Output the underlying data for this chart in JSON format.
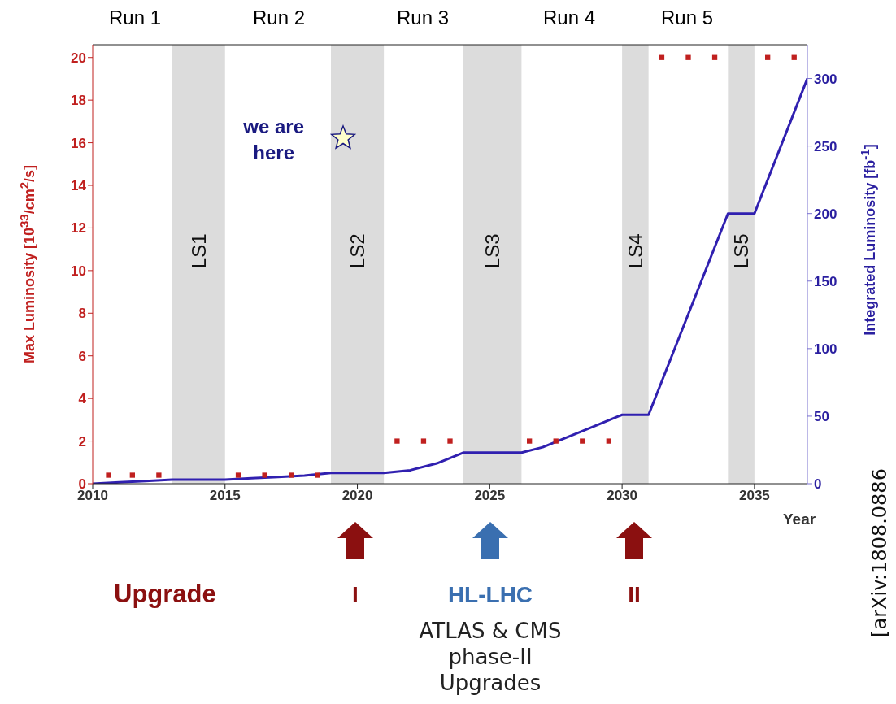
{
  "chart_data": {
    "type": "scatter",
    "xlabel": "Year",
    "ylabel": "Max Luminosity [10$^{33}$/cm$^{2}$/s]",
    "y2label": "Integrated Luminosity [fb$^{-1}$]",
    "xlim": [
      2010,
      2037
    ],
    "xticks": [
      2010,
      2015,
      2020,
      2025,
      2030,
      2035
    ],
    "ylim": [
      0,
      20.6
    ],
    "yticks": [
      0,
      2,
      4,
      6,
      8,
      10,
      12,
      14,
      16,
      18,
      20
    ],
    "y2lim": [
      0,
      325
    ],
    "y2ticks": [
      0,
      50,
      100,
      150,
      200,
      250,
      300
    ],
    "line_style": "solid",
    "series": [
      {
        "marker": "square",
        "color": "#c0201f",
        "x": [
          2010.6,
          2011.5,
          2012.5,
          2015.5,
          2016.5,
          2017.5,
          2018.5,
          2021.5,
          2022.5,
          2023.5,
          2026.5,
          2027.5,
          2028.5,
          2029.5,
          2031.5,
          2032.5,
          2033.5,
          2035.5,
          2036.5
        ],
        "values": [
          0.4,
          0.4,
          0.4,
          0.4,
          0.4,
          0.4,
          0.4,
          2,
          2,
          2,
          2,
          2,
          2,
          2,
          20,
          20,
          20,
          20,
          20
        ]
      },
      {
        "type": "line",
        "axis": "y2",
        "color": "#3020b0",
        "x": [
          2010,
          2011,
          2012,
          2013,
          2015,
          2016,
          2017,
          2018,
          2019,
          2021,
          2022,
          2023,
          2024,
          2026.2,
          2027,
          2028,
          2029,
          2030,
          2031,
          2034,
          2035,
          2037
        ],
        "values": [
          0,
          1,
          2,
          3,
          3,
          4,
          5,
          6,
          8,
          8,
          10,
          15,
          23,
          23,
          27,
          35,
          43,
          51,
          51,
          200,
          200,
          300
        ]
      }
    ],
    "bands": [
      {
        "axis": "x",
        "from": 2013,
        "to": 2015,
        "label": "LS1",
        "color": "#dcdcdc"
      },
      {
        "axis": "x",
        "from": 2019,
        "to": 2021,
        "label": "LS2",
        "color": "#dcdcdc"
      },
      {
        "axis": "x",
        "from": 2024,
        "to": 2026.2,
        "label": "LS3",
        "color": "#dcdcdc"
      },
      {
        "axis": "x",
        "from": 2030,
        "to": 2031,
        "label": "LS4",
        "color": "#dcdcdc"
      },
      {
        "axis": "x",
        "from": 2034,
        "to": 2035,
        "label": "LS5",
        "color": "#dcdcdc"
      }
    ],
    "annotations": [
      {
        "text": "we are here",
        "x": 2019.45,
        "y": 16.2
      },
      "Run 1",
      "Run 2",
      "Run 3",
      "Run 4",
      "Run 5",
      "Upgrade",
      "I",
      "HL-LHC",
      "II",
      "ATLAS & CMS phase-II Upgrades",
      "[arXiv:1808.0886"
    ]
  }
}
